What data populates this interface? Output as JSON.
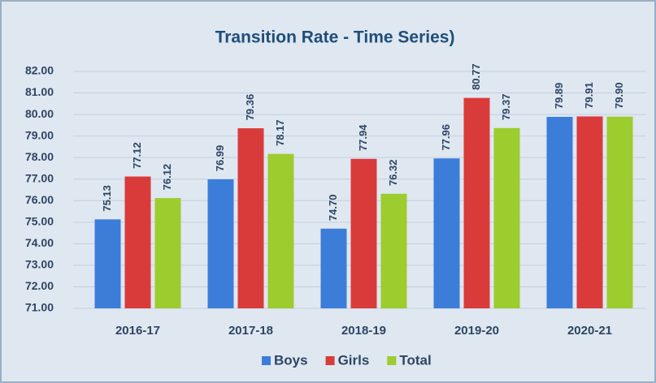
{
  "chart_data": {
    "type": "bar",
    "title": "Transition Rate - Time Series)",
    "categories": [
      "2016-17",
      "2017-18",
      "2018-19",
      "2019-20",
      "2020-21"
    ],
    "series": [
      {
        "name": "Boys",
        "color": "#3b7dd8",
        "values": [
          75.13,
          76.99,
          74.7,
          77.96,
          79.89
        ],
        "value_labels": [
          "75.13",
          "76.99",
          "74.70",
          "77.96",
          "79.89"
        ]
      },
      {
        "name": "Girls",
        "color": "#d93b3b",
        "values": [
          77.12,
          79.36,
          77.94,
          80.77,
          79.91
        ],
        "value_labels": [
          "77.12",
          "79.36",
          "77.94",
          "80.77",
          "79.91"
        ]
      },
      {
        "name": "Total",
        "color": "#9ccc2e",
        "values": [
          76.12,
          78.17,
          76.32,
          79.37,
          79.9
        ],
        "value_labels": [
          "76.12",
          "78.17",
          "76.32",
          "79.37",
          "79.90"
        ]
      }
    ],
    "ylim": [
      71,
      82
    ],
    "yticks": [
      {
        "value": 71,
        "label": "71.00"
      },
      {
        "value": 72,
        "label": "72.00"
      },
      {
        "value": 73,
        "label": "73.00"
      },
      {
        "value": 74,
        "label": "74.00"
      },
      {
        "value": 75,
        "label": "75.00"
      },
      {
        "value": 76,
        "label": "76.00"
      },
      {
        "value": 77,
        "label": "77.00"
      },
      {
        "value": 78,
        "label": "78.00"
      },
      {
        "value": 79,
        "label": "79.00"
      },
      {
        "value": 80,
        "label": "80.00"
      },
      {
        "value": 81,
        "label": "81.00"
      },
      {
        "value": 82,
        "label": "82.00"
      }
    ],
    "grid": true,
    "legend": "bottom"
  }
}
